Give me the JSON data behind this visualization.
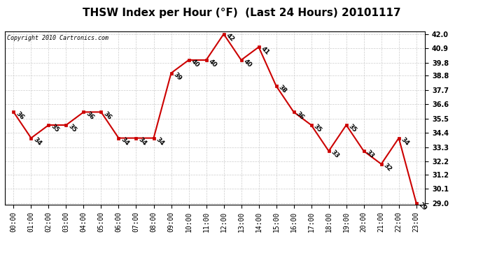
{
  "title": "THSW Index per Hour (°F)  (Last 24 Hours) 20101117",
  "copyright": "Copyright 2010 Cartronics.com",
  "hours": [
    "00:00",
    "01:00",
    "02:00",
    "03:00",
    "04:00",
    "05:00",
    "06:00",
    "07:00",
    "08:00",
    "09:00",
    "10:00",
    "11:00",
    "12:00",
    "13:00",
    "14:00",
    "15:00",
    "16:00",
    "17:00",
    "18:00",
    "19:00",
    "20:00",
    "21:00",
    "22:00",
    "23:00"
  ],
  "values": [
    36,
    34,
    35,
    35,
    36,
    36,
    34,
    34,
    34,
    39,
    40,
    40,
    42,
    40,
    41,
    38,
    36,
    35,
    33,
    35,
    33,
    32,
    34,
    29
  ],
  "line_color": "#cc0000",
  "marker_color": "#cc0000",
  "bg_color": "#ffffff",
  "grid_color": "#cccccc",
  "ylim_min": 28.9,
  "ylim_max": 42.2,
  "yticks": [
    29.0,
    30.1,
    31.2,
    32.2,
    33.3,
    34.4,
    35.5,
    36.6,
    37.7,
    38.8,
    39.8,
    40.9,
    42.0
  ],
  "title_fontsize": 11,
  "label_fontsize": 7,
  "annot_fontsize": 6.5
}
